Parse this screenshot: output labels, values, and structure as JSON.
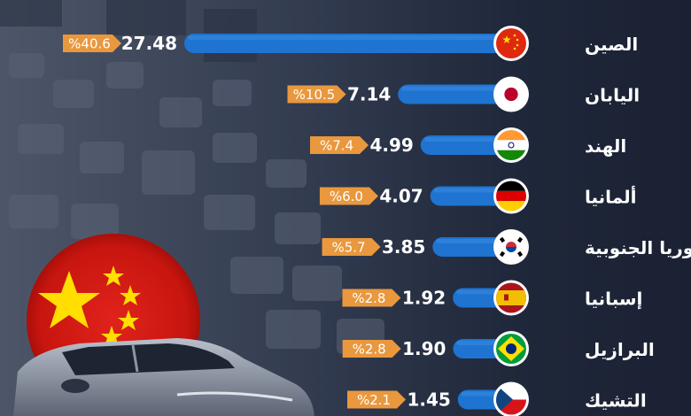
{
  "colors": {
    "bar": "#1e74d0",
    "bar_light": "#4a9cf0",
    "badge": "#e9983e",
    "label": "#ffffff",
    "background": "#1b2234"
  },
  "chart_data": {
    "type": "bar",
    "orientation": "horizontal",
    "title": "",
    "xlabel": "",
    "ylabel": "",
    "grid": false,
    "categories": [
      "الصين",
      "اليابان",
      "الهند",
      "ألمانيا",
      "كوريا الجنوبية",
      "إسبانيا",
      "البرازيل",
      "التشيك"
    ],
    "series": [
      {
        "values": [
          27.48,
          7.14,
          4.99,
          4.07,
          3.85,
          1.92,
          1.9,
          1.45
        ],
        "value_labels": [
          "27.48",
          "7.14",
          "4.99",
          "4.07",
          "3.85",
          "1.92",
          "1.90",
          "1.45"
        ],
        "share_labels": [
          "%40.6",
          "%10.5",
          "%7.4",
          "%6.0",
          "%5.7",
          "%2.8",
          "%2.8",
          "%2.1"
        ],
        "shares": [
          40.6,
          10.5,
          7.4,
          6.0,
          5.7,
          2.8,
          2.8,
          2.1
        ]
      }
    ],
    "flag_icons": [
      "china-flag-icon",
      "japan-flag-icon",
      "india-flag-icon",
      "germany-flag-icon",
      "south-korea-flag-icon",
      "spain-flag-icon",
      "brazil-flag-icon",
      "czechia-flag-icon"
    ]
  }
}
